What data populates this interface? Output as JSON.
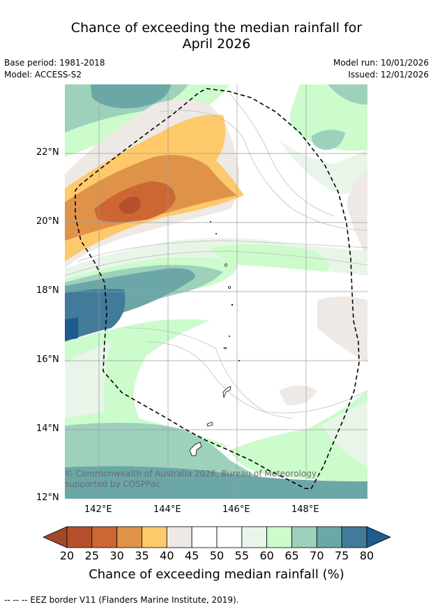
{
  "title": {
    "line1": "Chance of exceeding the median rainfall for",
    "line2": "April 2026"
  },
  "meta": {
    "base_period": "Base period: 1981-2018",
    "model": "Model: ACCESS-S2",
    "model_run": "Model run: 10/01/2026",
    "issued": "Issued: 12/01/2026"
  },
  "map": {
    "lat_labels": [
      "22°N",
      "20°N",
      "18°N",
      "16°N",
      "14°N",
      "12°N"
    ],
    "lon_labels": [
      "142°E",
      "144°E",
      "146°E",
      "148°E"
    ],
    "copyright": "© Commonwealth of Australia 2026, Bureau of Meteorology, supported by COSPPac"
  },
  "colorbar": {
    "ticks": [
      "20",
      "25",
      "30",
      "35",
      "40",
      "45",
      "50",
      "55",
      "60",
      "65",
      "70",
      "75",
      "80"
    ],
    "colors": [
      "#a2472c",
      "#b6502c",
      "#cc6733",
      "#df9349",
      "#fec96b",
      "#efe9e5",
      "#ffffff",
      "#ffffff",
      "#e9f5e9",
      "#ccfbcc",
      "#9dd1bc",
      "#6ca7a8",
      "#427b99",
      "#1f5b8c"
    ],
    "title": "Chance of exceeding median rainfall (%)"
  },
  "footer": "--  --  -- EEZ border V11 (Flanders Marine Institute, 2019)."
}
